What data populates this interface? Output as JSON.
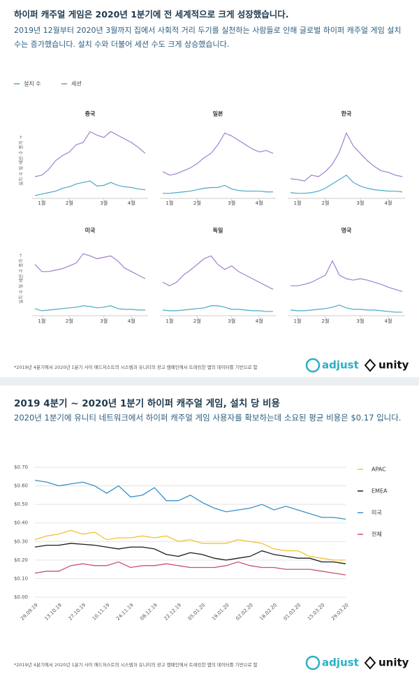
{
  "sections": [
    {
      "title": "하이퍼 캐주얼 게임은 2020년 1분기에 전 세계적으로 크게 성장했습니다.",
      "subtitle": "2019년 12월부터 2020년 3월까지 집에서 사회적 거리 두기를 실천하는 사람들로 인해 글로벌 하이퍼 캐주얼 게임 설치 수는 증가했습니다. 설치 수와 더불어 세션 수도 크게 상승했습니다.",
      "footnote": "*2019년 4분기에서 2020년 1분기 사이 애드저스트의 시스템과 유니티의 광고 캠페인에서 트래킹한 앱의 데이터를 기반으로 함",
      "logos": [
        "adjust",
        "unity"
      ]
    },
    {
      "title": "2019 4분기 ~ 2020년 1분기 하이퍼 캐주얼 게임, 설치 당 비용",
      "subtitle": "2020년 1분기에 유니티 네트워크에서 하이퍼 캐주얼 게임 사용자를 확보하는데 소요된 평균 비용은 $0.17 입니다.",
      "footnote": "*2019년 4분기에서 2020년 1분기 사이 애드저스트의 시스템과 유니티의 광고 캠페인에서 트래킹한 앱의 데이터를 기반으로 함",
      "logos": [
        "adjust",
        "unity"
      ]
    }
  ],
  "chart_data": [
    {
      "type": "small-multiples",
      "legend": [
        {
          "name": "설치 수",
          "color": "#4aa8c8"
        },
        {
          "name": "세션",
          "color": "#a07fd0"
        }
      ],
      "ylabel": "설치 수 및 세션 수 증가 →",
      "xlim": [
        0,
        16
      ],
      "ylim": [
        0,
        100
      ],
      "xticks": [
        {
          "value": 1,
          "label": "1월"
        },
        {
          "value": 5,
          "label": "2월"
        },
        {
          "value": 10,
          "label": "3월"
        },
        {
          "value": 14,
          "label": "4월"
        }
      ],
      "panels": [
        {
          "title": "중국",
          "series": [
            {
              "values": [
                2,
                4,
                6,
                8,
                12,
                14,
                18,
                20,
                22,
                15,
                16,
                20,
                16,
                14,
                13,
                11,
                10
              ]
            },
            {
              "values": [
                28,
                30,
                38,
                50,
                57,
                62,
                72,
                75,
                90,
                85,
                82,
                90,
                85,
                80,
                75,
                68,
                60
              ]
            }
          ]
        },
        {
          "title": "일본",
          "series": [
            {
              "values": [
                5,
                5,
                6,
                7,
                8,
                10,
                12,
                13,
                13,
                16,
                11,
                9,
                8,
                8,
                8,
                7,
                7
              ]
            },
            {
              "values": [
                35,
                30,
                32,
                36,
                40,
                46,
                54,
                60,
                72,
                88,
                84,
                78,
                72,
                66,
                62,
                64,
                60
              ]
            }
          ]
        },
        {
          "title": "한국",
          "series": [
            {
              "values": [
                6,
                5,
                5,
                6,
                8,
                12,
                18,
                24,
                30,
                20,
                15,
                12,
                10,
                9,
                8,
                8,
                7
              ]
            },
            {
              "values": [
                25,
                24,
                22,
                30,
                28,
                35,
                45,
                62,
                88,
                70,
                60,
                50,
                42,
                36,
                34,
                30,
                28
              ]
            }
          ]
        },
        {
          "title": "미국",
          "series": [
            {
              "values": [
                8,
                5,
                6,
                7,
                8,
                9,
                10,
                12,
                11,
                9,
                10,
                12,
                8,
                7,
                7,
                6,
                6
              ]
            },
            {
              "values": [
                70,
                60,
                60,
                62,
                64,
                68,
                72,
                85,
                82,
                78,
                80,
                82,
                75,
                65,
                60,
                55,
                50
              ]
            }
          ]
        },
        {
          "title": "독일",
          "series": [
            {
              "values": [
                6,
                5,
                5,
                6,
                7,
                8,
                9,
                12,
                12,
                10,
                7,
                7,
                6,
                5,
                5,
                4,
                4
              ]
            },
            {
              "values": [
                45,
                40,
                45,
                55,
                62,
                70,
                78,
                82,
                70,
                63,
                68,
                60,
                55,
                50,
                45,
                40,
                35
              ]
            }
          ]
        },
        {
          "title": "영국",
          "series": [
            {
              "values": [
                6,
                5,
                5,
                6,
                7,
                8,
                10,
                13,
                9,
                7,
                7,
                6,
                6,
                5,
                4,
                3,
                3
              ]
            },
            {
              "values": [
                40,
                40,
                42,
                45,
                50,
                55,
                75,
                55,
                50,
                48,
                50,
                48,
                45,
                42,
                38,
                35,
                32
              ]
            }
          ]
        }
      ]
    },
    {
      "type": "line",
      "grid": true,
      "categories": [
        "29.09.19",
        null,
        "13.10.19",
        null,
        "27.10.19",
        null,
        "10.11.19",
        null,
        "24.11.19",
        null,
        "08.12.19",
        null,
        "22.12.19",
        null,
        "05.01.20",
        null,
        "19.01.20",
        null,
        "02.02.20",
        null,
        "16.02.20",
        null,
        "01.03.20",
        null,
        "15.03.20",
        null,
        "29.03.20"
      ],
      "ylim": [
        0,
        0.7
      ],
      "yticks": [
        {
          "value": 0,
          "label": "$0.00"
        },
        {
          "value": 0.1,
          "label": "$0.10"
        },
        {
          "value": 0.2,
          "label": "$0.20"
        },
        {
          "value": 0.3,
          "label": "$0.30"
        },
        {
          "value": 0.4,
          "label": "$0.40"
        },
        {
          "value": 0.5,
          "label": "$0.50"
        },
        {
          "value": 0.6,
          "label": "$0.60"
        },
        {
          "value": 0.7,
          "label": "$0.70"
        }
      ],
      "series": [
        {
          "name": "APAC",
          "color": "#f2c233",
          "values": [
            0.31,
            0.33,
            0.34,
            0.36,
            0.34,
            0.35,
            0.31,
            0.32,
            0.32,
            0.33,
            0.32,
            0.33,
            0.3,
            0.31,
            0.29,
            0.29,
            0.29,
            0.31,
            0.3,
            0.29,
            0.26,
            0.25,
            0.25,
            0.22,
            0.21,
            0.2,
            0.2
          ]
        },
        {
          "name": "EMEA",
          "color": "#1a1a1a",
          "values": [
            0.27,
            0.28,
            0.28,
            0.29,
            0.285,
            0.28,
            0.27,
            0.26,
            0.27,
            0.27,
            0.26,
            0.23,
            0.22,
            0.24,
            0.23,
            0.21,
            0.2,
            0.21,
            0.22,
            0.25,
            0.23,
            0.22,
            0.21,
            0.21,
            0.19,
            0.19,
            0.18
          ]
        },
        {
          "name": "미국",
          "color": "#3a8fc4",
          "values": [
            0.63,
            0.62,
            0.6,
            0.61,
            0.62,
            0.6,
            0.56,
            0.6,
            0.54,
            0.55,
            0.59,
            0.52,
            0.52,
            0.55,
            0.51,
            0.48,
            0.46,
            0.47,
            0.48,
            0.5,
            0.47,
            0.49,
            0.47,
            0.45,
            0.43,
            0.43,
            0.42
          ]
        },
        {
          "name": "전체",
          "color": "#c9506e",
          "values": [
            0.13,
            0.14,
            0.14,
            0.17,
            0.18,
            0.17,
            0.17,
            0.19,
            0.16,
            0.17,
            0.17,
            0.18,
            0.17,
            0.16,
            0.16,
            0.16,
            0.17,
            0.19,
            0.17,
            0.16,
            0.16,
            0.15,
            0.15,
            0.15,
            0.14,
            0.13,
            0.12
          ]
        }
      ]
    }
  ]
}
